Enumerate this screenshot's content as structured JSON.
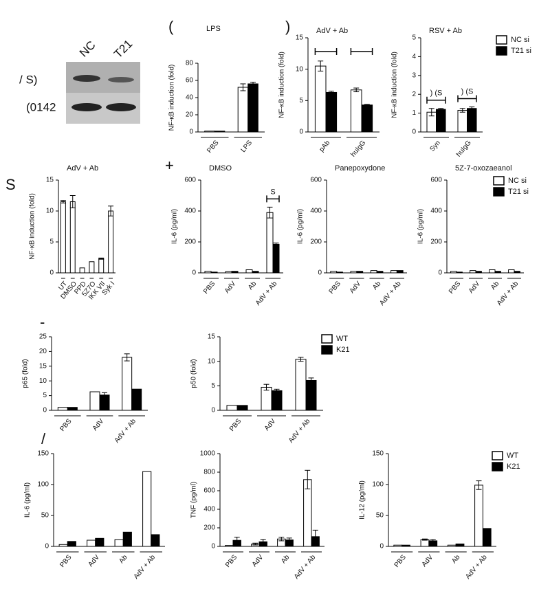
{
  "panel_labels": [
    "(",
    ")",
    "S",
    "+",
    "-",
    "/"
  ],
  "blot": {
    "lanes": [
      "NC",
      "T21"
    ],
    "rows": [
      "/ S)",
      "(0142"
    ]
  },
  "chart_data": [
    {
      "type": "bar",
      "title": "LPS",
      "y_label": "NF-κB induction (fold)",
      "ylim": [
        0,
        80
      ],
      "yticks": [
        0,
        20,
        40,
        60,
        80
      ],
      "categories": [
        "PBS",
        "LPS"
      ],
      "series": [
        {
          "name": "NC si",
          "color": "#ffffff",
          "values": [
            1,
            52
          ],
          "errors": [
            null,
            4
          ]
        },
        {
          "name": "T21 si",
          "color": "#000000",
          "values": [
            1,
            56
          ],
          "errors": [
            null,
            2
          ]
        }
      ]
    },
    {
      "type": "bar",
      "title": "AdV + Ab",
      "y_label": "NF-κB induction (fold)",
      "ylim": [
        0,
        15
      ],
      "yticks": [
        0,
        5,
        10,
        15
      ],
      "categories": [
        "pAb",
        "huIgG"
      ],
      "series": [
        {
          "name": "NC si",
          "color": "#ffffff",
          "values": [
            10.5,
            6.7
          ],
          "errors": [
            0.8,
            0.3
          ]
        },
        {
          "name": "T21 si",
          "color": "#000000",
          "values": [
            6.3,
            4.3
          ],
          "errors": [
            0.2,
            0.1
          ]
        }
      ]
    },
    {
      "type": "bar",
      "title": "RSV + Ab",
      "y_label": "NF-κB induction (fold)",
      "ylim": [
        0,
        5
      ],
      "yticks": [
        0,
        1,
        2,
        3,
        4,
        5
      ],
      "categories": [
        "Syn",
        "huIgG"
      ],
      "annotations": [
        ") (S",
        ") (S"
      ],
      "legend": "right",
      "series": [
        {
          "name": "NC si",
          "color": "#ffffff",
          "values": [
            1.05,
            1.15
          ],
          "errors": [
            0.2,
            0.1
          ]
        },
        {
          "name": "T21 si",
          "color": "#000000",
          "values": [
            1.2,
            1.25
          ],
          "errors": [
            0.05,
            0.08
          ]
        }
      ]
    },
    {
      "type": "bar",
      "title": "AdV + Ab",
      "y_label": "NF-κB induction (fold)",
      "ylim": [
        0,
        15
      ],
      "yticks": [
        0,
        5,
        10,
        15
      ],
      "categories": [
        "UT",
        "DMSO",
        "PPD",
        "5Z7O",
        "IKK VII",
        "Syk I"
      ],
      "series": [
        {
          "color": "#ffffff",
          "values": [
            11.5,
            11.5,
            0.8,
            1.8,
            2.3,
            10
          ],
          "errors": [
            0.2,
            1,
            null,
            null,
            0.1,
            0.8
          ]
        }
      ]
    },
    {
      "type": "bar",
      "title": "DMSO",
      "y_label": "IL-6 (pg/ml)",
      "ylim": [
        0,
        600
      ],
      "yticks": [
        0,
        200,
        400,
        600
      ],
      "categories": [
        "PBS",
        "AdV",
        "Ab",
        "AdV + Ab"
      ],
      "annotations": [
        null,
        null,
        null,
        "S"
      ],
      "series": [
        {
          "name": "NC si",
          "color": "#ffffff",
          "values": [
            10,
            8,
            20,
            390
          ],
          "errors": [
            null,
            null,
            null,
            35
          ]
        },
        {
          "name": "T21 si",
          "color": "#000000",
          "values": [
            5,
            10,
            10,
            185
          ],
          "errors": [
            null,
            null,
            null,
            8
          ]
        }
      ]
    },
    {
      "type": "bar",
      "title": "Panepoxydone",
      "y_label": "IL-6 (pg/ml)",
      "ylim": [
        0,
        600
      ],
      "yticks": [
        0,
        200,
        400,
        600
      ],
      "categories": [
        "PBS",
        "AdV",
        "Ab",
        "AdV + Ab"
      ],
      "series": [
        {
          "name": "NC si",
          "color": "#ffffff",
          "values": [
            10,
            10,
            15,
            15
          ],
          "errors": [
            null,
            null,
            null,
            null
          ]
        },
        {
          "name": "T21 si",
          "color": "#000000",
          "values": [
            5,
            10,
            10,
            15
          ],
          "errors": [
            null,
            null,
            null,
            null
          ]
        }
      ]
    },
    {
      "type": "bar",
      "title": "5Z-7-oxozaeanol",
      "y_label": "IL-6 (pg/ml)",
      "ylim": [
        0,
        600
      ],
      "yticks": [
        0,
        200,
        400,
        600
      ],
      "categories": [
        "PBS",
        "AdV",
        "Ab",
        "AdV + Ab"
      ],
      "legend": "right",
      "series": [
        {
          "name": "NC si",
          "color": "#ffffff",
          "values": [
            10,
            15,
            20,
            20
          ],
          "errors": [
            null,
            null,
            null,
            null
          ]
        },
        {
          "name": "T21 si",
          "color": "#000000",
          "values": [
            5,
            10,
            10,
            10
          ],
          "errors": [
            null,
            null,
            null,
            null
          ]
        }
      ]
    },
    {
      "type": "bar",
      "y_label": "p65 (fold)",
      "ylim": [
        0,
        25
      ],
      "yticks": [
        0,
        5,
        10,
        15,
        20,
        25
      ],
      "categories": [
        "PBS",
        "AdV",
        "AdV + Ab"
      ],
      "series": [
        {
          "name": "WT",
          "color": "#ffffff",
          "values": [
            1,
            6.3,
            18
          ],
          "errors": [
            null,
            null,
            1.2
          ]
        },
        {
          "name": "K21",
          "color": "#000000",
          "values": [
            1,
            5.2,
            7.2
          ],
          "errors": [
            null,
            0.8,
            null
          ]
        }
      ]
    },
    {
      "type": "bar",
      "y_label": "p50 (fold)",
      "ylim": [
        0,
        15
      ],
      "yticks": [
        0,
        5,
        10,
        15
      ],
      "categories": [
        "PBS",
        "AdV",
        "AdV + Ab"
      ],
      "legend": "right",
      "series": [
        {
          "name": "WT",
          "color": "#ffffff",
          "values": [
            1,
            4.7,
            10.4
          ],
          "errors": [
            null,
            0.6,
            0.4
          ]
        },
        {
          "name": "K21",
          "color": "#000000",
          "values": [
            1,
            4,
            6.1
          ],
          "errors": [
            null,
            0.3,
            0.5
          ]
        }
      ]
    },
    {
      "type": "bar",
      "y_label": "IL-6 (pg/ml)",
      "ylim": [
        0,
        150
      ],
      "yticks": [
        0,
        50,
        100,
        150
      ],
      "categories": [
        "PBS",
        "AdV",
        "Ab",
        "AdV + Ab"
      ],
      "series": [
        {
          "name": "WT",
          "color": "#ffffff",
          "values": [
            3,
            10,
            11,
            121
          ],
          "errors": [
            null,
            null,
            null,
            null
          ]
        },
        {
          "name": "K21",
          "color": "#000000",
          "values": [
            8,
            13,
            23,
            19
          ],
          "errors": [
            null,
            null,
            null,
            null
          ]
        }
      ]
    },
    {
      "type": "bar",
      "y_label": "TNF (pg/ml)",
      "ylim": [
        0,
        1000
      ],
      "yticks": [
        0,
        200,
        400,
        600,
        800,
        1000
      ],
      "categories": [
        "PBS",
        "AdV",
        "Ab",
        "AdV + Ab"
      ],
      "series": [
        {
          "name": "WT",
          "color": "#ffffff",
          "values": [
            10,
            25,
            80,
            720
          ],
          "errors": [
            null,
            10,
            20,
            100
          ]
        },
        {
          "name": "K21",
          "color": "#000000",
          "values": [
            65,
            50,
            70,
            105
          ],
          "errors": [
            35,
            25,
            20,
            70
          ]
        }
      ]
    },
    {
      "type": "bar",
      "y_label": "IL-12 (pg/ml)",
      "ylim": [
        0,
        150
      ],
      "yticks": [
        0,
        50,
        100,
        150
      ],
      "categories": [
        "PBS",
        "AdV",
        "Ab",
        "AdV + Ab"
      ],
      "legend": "right",
      "series": [
        {
          "name": "WT",
          "color": "#ffffff",
          "values": [
            2,
            11,
            2,
            99
          ],
          "errors": [
            null,
            1,
            null,
            7
          ]
        },
        {
          "name": "K21",
          "color": "#000000",
          "values": [
            2,
            9,
            4,
            29
          ],
          "errors": [
            null,
            2,
            null,
            null
          ]
        }
      ]
    }
  ]
}
